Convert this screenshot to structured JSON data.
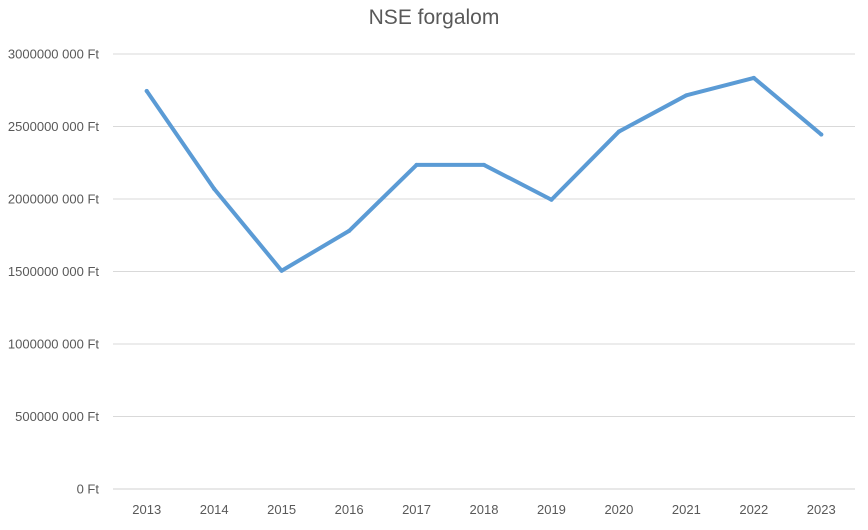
{
  "chart_data": {
    "type": "line",
    "title": "NSE forgalom",
    "xlabel": "",
    "ylabel": "",
    "categories": [
      "2013",
      "2014",
      "2015",
      "2016",
      "2017",
      "2018",
      "2019",
      "2020",
      "2021",
      "2022",
      "2023"
    ],
    "series": [
      {
        "values": [
          2745000000,
          2070000000,
          1505000000,
          1780000000,
          2235000000,
          2235000000,
          1995000000,
          2465000000,
          2715000000,
          2835000000,
          2445000000
        ],
        "color": "#5b9bd5"
      }
    ],
    "ylim": [
      0,
      3000000000
    ],
    "yticks": [
      0,
      500000000,
      1000000000,
      1500000000,
      2000000000,
      2500000000,
      3000000000
    ],
    "ytick_labels": [
      "0 Ft",
      "500000 000 Ft",
      "1000000 000 Ft",
      "1500000 000 Ft",
      "2000000 000 Ft",
      "2500000 000 Ft",
      "3000000 000 Ft"
    ],
    "grid": true,
    "legend": "none"
  }
}
